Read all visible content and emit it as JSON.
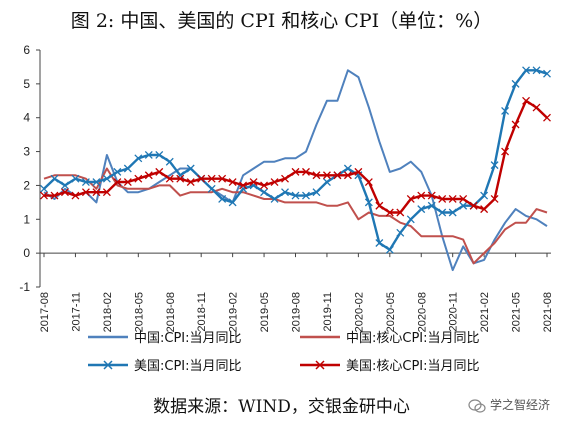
{
  "title": "图 2: 中国、美国的 CPI 和核心 CPI（单位：%）",
  "source": "数据来源：WIND，交银金研中心",
  "watermark": "学之智经济",
  "chart_data": {
    "type": "line",
    "ylim": [
      -1,
      6
    ],
    "yticks": [
      -1,
      0,
      1,
      2,
      3,
      4,
      5,
      6
    ],
    "x": [
      "2017-08",
      "2017-09",
      "2017-10",
      "2017-11",
      "2017-12",
      "2018-01",
      "2018-02",
      "2018-03",
      "2018-04",
      "2018-05",
      "2018-06",
      "2018-07",
      "2018-08",
      "2018-09",
      "2018-10",
      "2018-11",
      "2018-12",
      "2019-01",
      "2019-02",
      "2019-03",
      "2019-04",
      "2019-05",
      "2019-06",
      "2019-07",
      "2019-08",
      "2019-09",
      "2019-10",
      "2019-11",
      "2019-12",
      "2020-01",
      "2020-02",
      "2020-03",
      "2020-04",
      "2020-05",
      "2020-06",
      "2020-07",
      "2020-08",
      "2020-09",
      "2020-10",
      "2020-11",
      "2020-12",
      "2021-01",
      "2021-02",
      "2021-03",
      "2021-04",
      "2021-05",
      "2021-06",
      "2021-07",
      "2021-08"
    ],
    "xtick_labels": [
      "2017-08",
      "2017-11",
      "2018-02",
      "2018-05",
      "2018-08",
      "2018-11",
      "2019-02",
      "2019-05",
      "2019-08",
      "2019-11",
      "2020-02",
      "2020-05",
      "2020-08",
      "2020-11",
      "2021-02",
      "2021-05",
      "2021-08"
    ],
    "legend_position": "bottom",
    "series": [
      {
        "name": "中国:CPI:当月同比",
        "color": "#4f81bd",
        "marker": "none",
        "values": [
          1.8,
          1.6,
          1.9,
          1.7,
          1.8,
          1.5,
          2.9,
          2.1,
          1.8,
          1.8,
          1.9,
          2.1,
          2.3,
          2.5,
          2.5,
          2.2,
          1.9,
          1.7,
          1.5,
          2.3,
          2.5,
          2.7,
          2.7,
          2.8,
          2.8,
          3.0,
          3.8,
          4.5,
          4.5,
          5.4,
          5.2,
          4.3,
          3.3,
          2.4,
          2.5,
          2.7,
          2.4,
          1.7,
          0.5,
          -0.5,
          0.2,
          -0.3,
          -0.2,
          0.4,
          0.9,
          1.3,
          1.1,
          1.0,
          0.8
        ]
      },
      {
        "name": "中国:核心CPI:当月同比",
        "color": "#c0504d",
        "marker": "none",
        "values": [
          2.2,
          2.3,
          2.3,
          2.3,
          2.2,
          1.9,
          2.5,
          2.0,
          1.9,
          1.9,
          1.9,
          2.0,
          2.0,
          1.7,
          1.8,
          1.8,
          1.8,
          1.9,
          1.8,
          1.8,
          1.7,
          1.6,
          1.6,
          1.5,
          1.5,
          1.5,
          1.5,
          1.4,
          1.4,
          1.5,
          1.0,
          1.2,
          1.1,
          1.1,
          0.9,
          0.8,
          0.5,
          0.5,
          0.5,
          0.5,
          0.4,
          -0.3,
          0.0,
          0.3,
          0.7,
          0.9,
          0.9,
          1.3,
          1.2
        ]
      },
      {
        "name": "美国:CPI:当月同比",
        "color": "#1f77b4",
        "marker": "x",
        "values": [
          1.9,
          2.2,
          2.0,
          2.2,
          2.1,
          2.1,
          2.2,
          2.4,
          2.5,
          2.8,
          2.9,
          2.9,
          2.7,
          2.3,
          2.5,
          2.2,
          1.9,
          1.6,
          1.5,
          1.9,
          2.0,
          1.8,
          1.6,
          1.8,
          1.7,
          1.7,
          1.8,
          2.1,
          2.3,
          2.5,
          2.3,
          1.5,
          0.3,
          0.1,
          0.6,
          1.0,
          1.3,
          1.4,
          1.2,
          1.2,
          1.4,
          1.4,
          1.7,
          2.6,
          4.2,
          5.0,
          5.4,
          5.4,
          5.3
        ]
      },
      {
        "name": "美国:核心CPI:当月同比",
        "color": "#c00000",
        "marker": "x",
        "values": [
          1.7,
          1.7,
          1.8,
          1.7,
          1.8,
          1.8,
          1.8,
          2.1,
          2.1,
          2.2,
          2.3,
          2.4,
          2.2,
          2.2,
          2.1,
          2.2,
          2.2,
          2.2,
          2.1,
          2.0,
          2.1,
          2.0,
          2.1,
          2.2,
          2.4,
          2.4,
          2.3,
          2.3,
          2.3,
          2.3,
          2.4,
          2.1,
          1.4,
          1.2,
          1.2,
          1.6,
          1.7,
          1.7,
          1.6,
          1.6,
          1.6,
          1.4,
          1.3,
          1.6,
          3.0,
          3.8,
          4.5,
          4.3,
          4.0
        ]
      }
    ]
  }
}
